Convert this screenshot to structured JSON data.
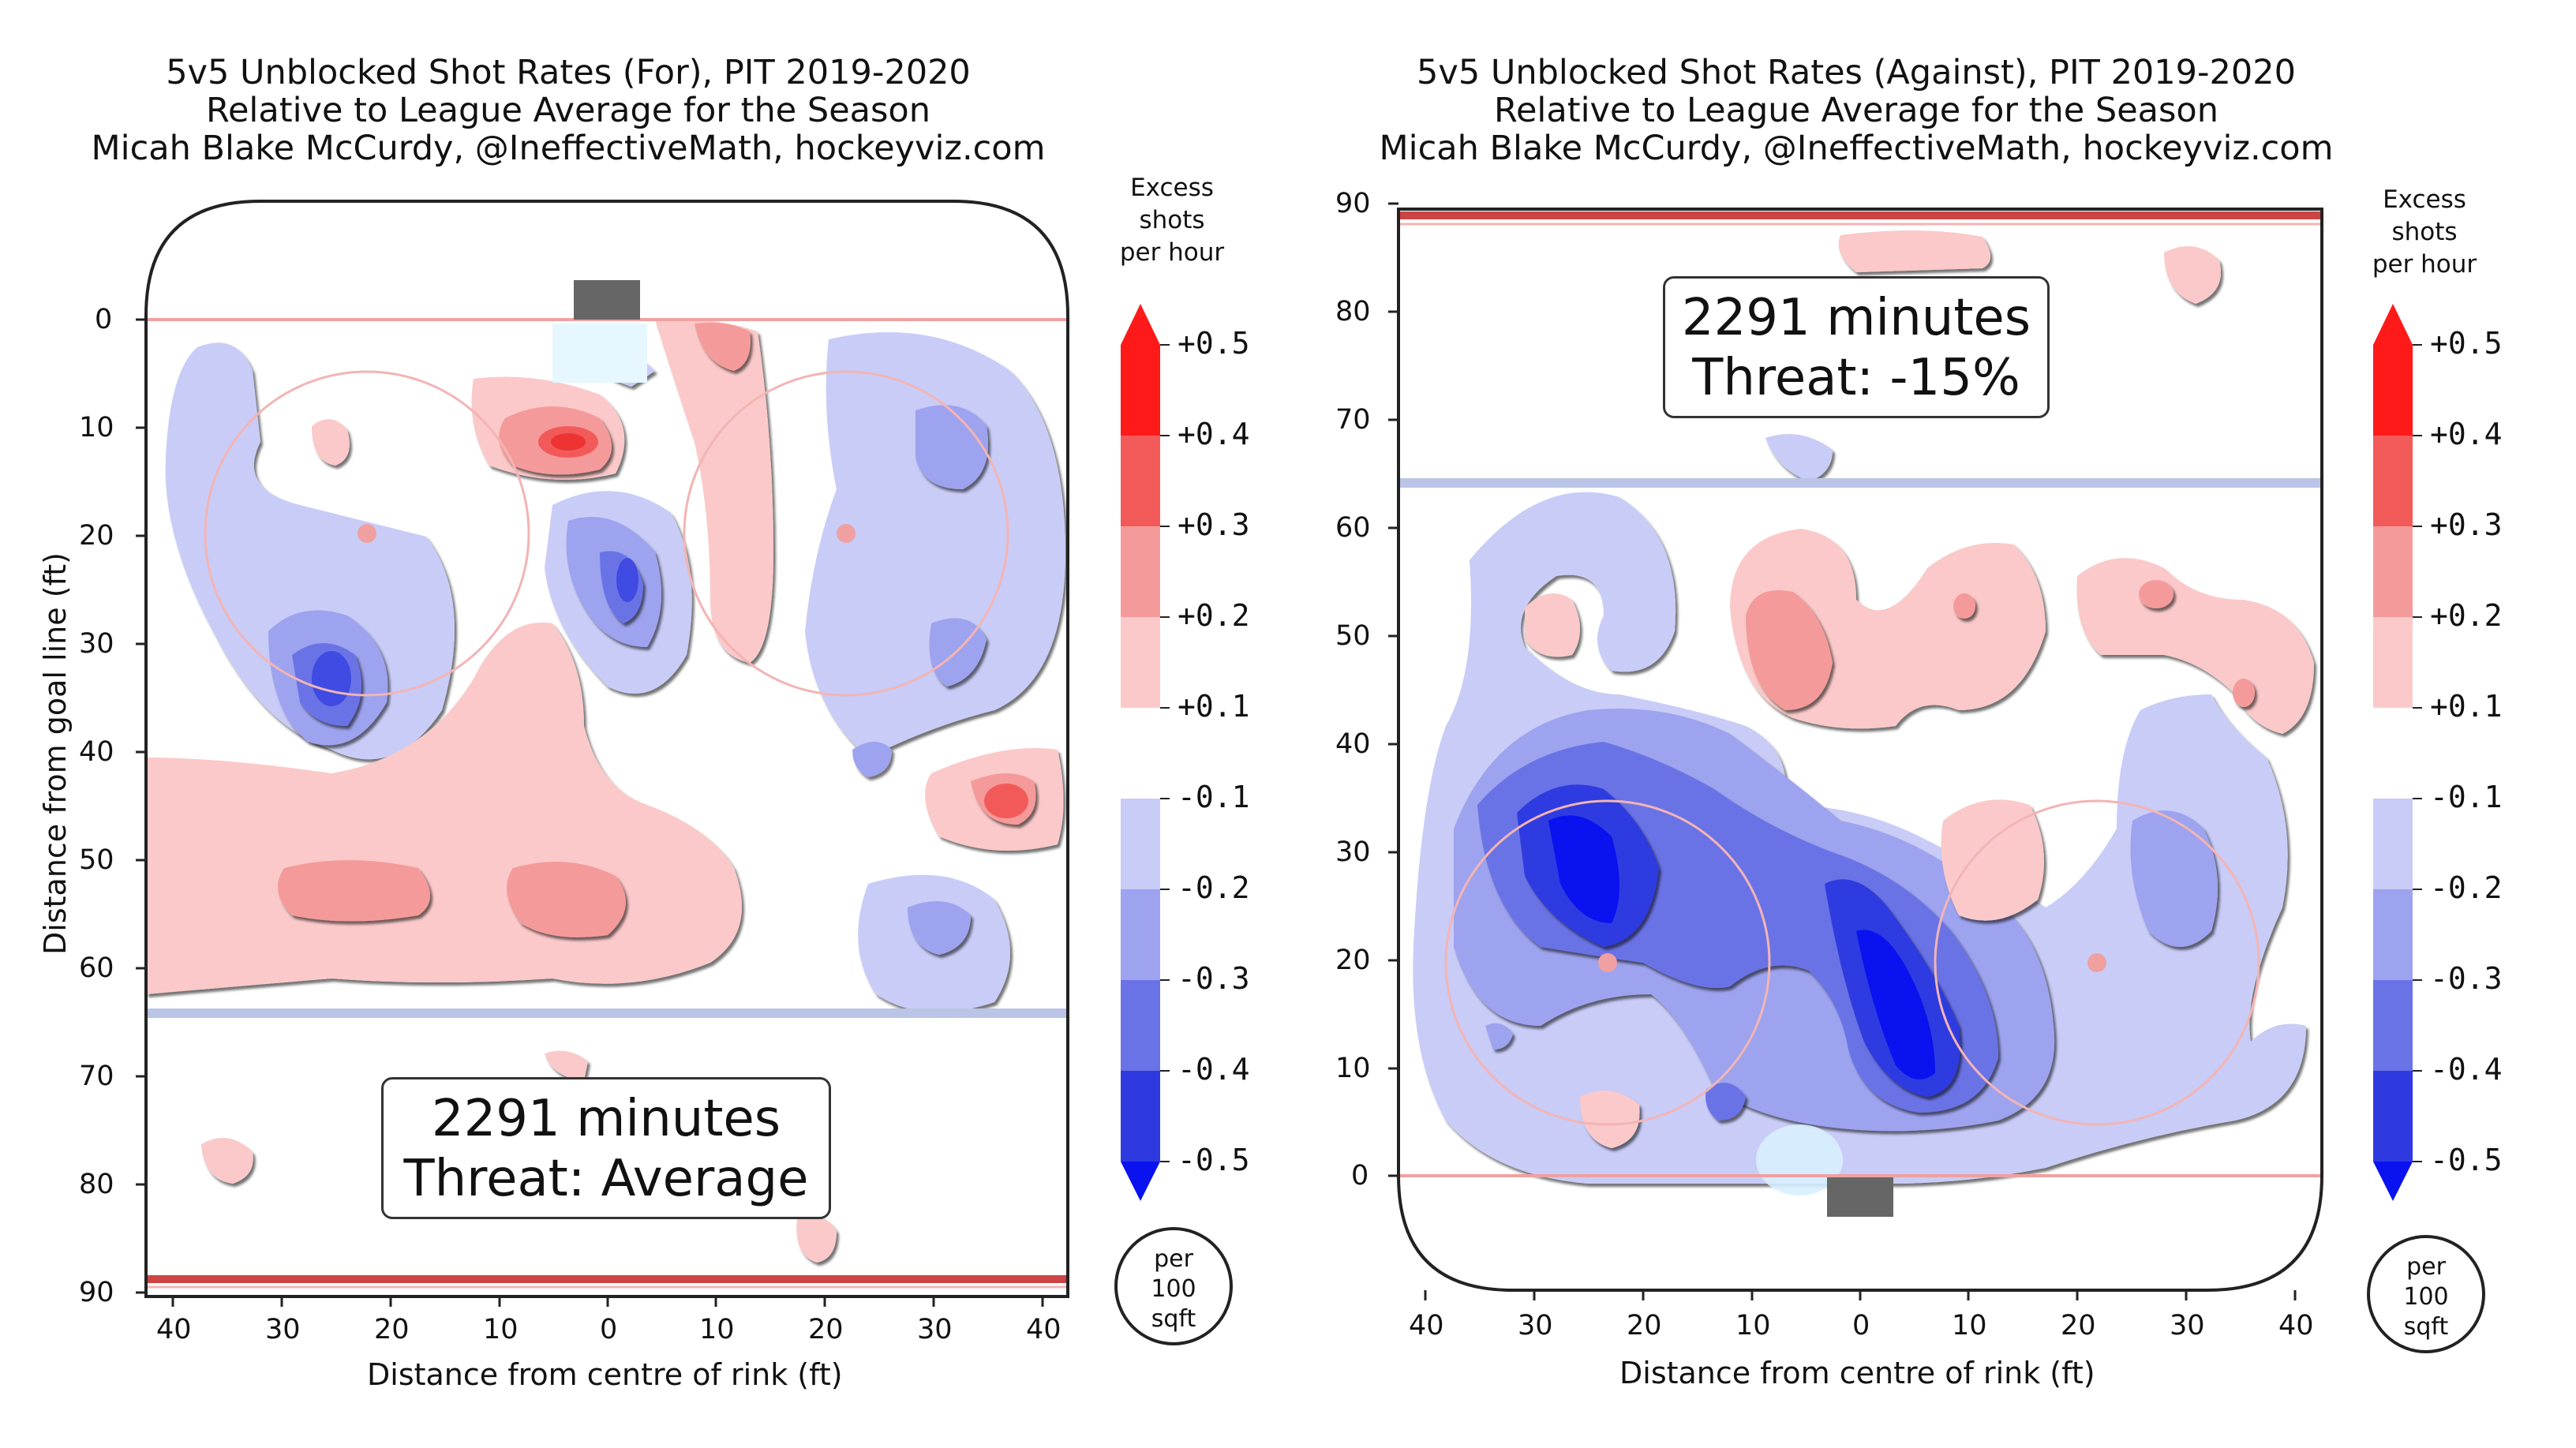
{
  "colors": {
    "red_strong": "#ff1a1a",
    "red_mid": "#f25a5a",
    "red_light": "#f59a9a",
    "red_pale": "#fbc9c9",
    "blue_pale": "#c8ccf7",
    "blue_light": "#9da3ee",
    "blue_mid": "#6a73e6",
    "blue_strong": "#2e3ae0",
    "blue_deep": "#0a12f0",
    "rink_line_red": "#f0a0a0",
    "blue_line": "#b9c4e6"
  },
  "colorbar": {
    "title": [
      "Excess",
      "shots",
      "per hour"
    ],
    "labels": [
      "+0.5",
      "+0.4",
      "+0.3",
      "+0.2",
      "+0.1",
      "-0.1",
      "-0.2",
      "-0.3",
      "-0.4",
      "-0.5"
    ],
    "unit": [
      "per",
      "100",
      "sqft"
    ]
  },
  "chart_data": [
    {
      "type": "heatmap",
      "title": [
        "5v5 Unblocked Shot Rates (For), PIT 2019-2020",
        "Relative to League Average for the Season",
        "Micah Blake McCurdy, @IneffectiveMath, hockeyviz.com"
      ],
      "xlabel": "Distance from centre of rink (ft)",
      "ylabel": "Distance from goal line (ft)",
      "xlim": [
        -42.5,
        42.5
      ],
      "ylim": [
        -11,
        90
      ],
      "x_ticks": [
        "40",
        "30",
        "20",
        "10",
        "0",
        "10",
        "20",
        "30",
        "40"
      ],
      "y_ticks": [
        "0",
        "10",
        "20",
        "30",
        "40",
        "50",
        "60",
        "70",
        "80",
        "90"
      ],
      "annotation": [
        "2291 minutes",
        "Threat: Average"
      ],
      "colorbar_range": [
        -0.5,
        0.5
      ],
      "regions": [
        {
          "x": -25,
          "y": 34,
          "value": -0.4
        },
        {
          "x": 2,
          "y": 23,
          "value": -0.35
        },
        {
          "x": -2,
          "y": 11,
          "value": 0.4
        },
        {
          "x": 10,
          "y": 1,
          "value": 0.3
        },
        {
          "x": 30,
          "y": 12,
          "value": -0.3
        },
        {
          "x": 33,
          "y": 30,
          "value": -0.3
        },
        {
          "x": 36,
          "y": 44,
          "value": 0.35
        },
        {
          "x": 30,
          "y": 56,
          "value": -0.3
        },
        {
          "x": -24,
          "y": 52,
          "value": 0.2
        },
        {
          "x": 0,
          "y": 54,
          "value": 0.2
        },
        {
          "x": -25,
          "y": 11,
          "value": 0.15
        },
        {
          "x": -34,
          "y": 78,
          "value": 0.15
        },
        {
          "x": 20,
          "y": 85,
          "value": 0.15
        }
      ]
    },
    {
      "type": "heatmap",
      "title": [
        "5v5 Unblocked Shot Rates (Against), PIT 2019-2020",
        "Relative to League Average for the Season",
        "Micah Blake McCurdy, @IneffectiveMath, hockeyviz.com"
      ],
      "xlabel": "Distance from centre of rink (ft)",
      "ylabel": "",
      "xlim": [
        -42.5,
        42.5
      ],
      "ylim": [
        -11,
        90
      ],
      "x_ticks": [
        "40",
        "30",
        "20",
        "10",
        "0",
        "10",
        "20",
        "30",
        "40"
      ],
      "y_ticks": [
        "0",
        "10",
        "20",
        "30",
        "40",
        "50",
        "60",
        "70",
        "80",
        "90"
      ],
      "annotation": [
        "2291 minutes",
        "Threat: -15%"
      ],
      "colorbar_range": [
        -0.5,
        0.5
      ],
      "regions": [
        {
          "x": -24,
          "y": 28,
          "value": -0.5
        },
        {
          "x": 6,
          "y": 12,
          "value": -0.5
        },
        {
          "x": -8,
          "y": 22,
          "value": -0.4
        },
        {
          "x": -7,
          "y": 10,
          "value": -0.3
        },
        {
          "x": 28,
          "y": 30,
          "value": -0.3
        },
        {
          "x": -6,
          "y": 46,
          "value": 0.25
        },
        {
          "x": 10,
          "y": 49,
          "value": 0.15
        },
        {
          "x": 28,
          "y": 50,
          "value": 0.15
        },
        {
          "x": 14,
          "y": 28,
          "value": 0.2
        },
        {
          "x": -28,
          "y": 51,
          "value": 0.15
        },
        {
          "x": -22,
          "y": 5,
          "value": 0.2
        },
        {
          "x": 30,
          "y": 83,
          "value": 0.15
        },
        {
          "x": 0,
          "y": 88,
          "value": 0.15
        }
      ]
    }
  ]
}
